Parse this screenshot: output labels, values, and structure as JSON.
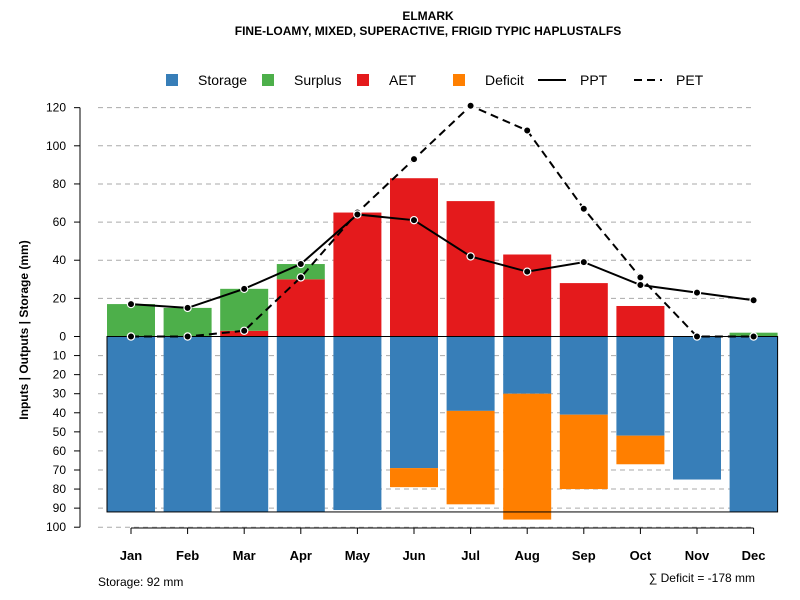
{
  "chart_data": {
    "type": "bar",
    "title": "ELMARK",
    "subtitle": "FINE-LOAMY, MIXED, SUPERACTIVE, FRIGID TYPIC HAPLUSTALFS",
    "ylabel": "Inputs | Outputs | Storage    (mm)",
    "months": [
      "Jan",
      "Feb",
      "Mar",
      "Apr",
      "May",
      "Jun",
      "Jul",
      "Aug",
      "Sep",
      "Oct",
      "Nov",
      "Dec"
    ],
    "upper_ylim": [
      0,
      130
    ],
    "upper_ticks": [
      0,
      20,
      40,
      60,
      80,
      100,
      120
    ],
    "lower_ylim": [
      0,
      100
    ],
    "lower_ticks": [
      0,
      10,
      20,
      30,
      40,
      50,
      60,
      70,
      80,
      90,
      100
    ],
    "aet": [
      0,
      0,
      3,
      30,
      65,
      83,
      71,
      43,
      28,
      16,
      0,
      0
    ],
    "surplus": [
      17,
      15,
      22,
      8,
      0,
      0,
      0,
      0,
      0,
      0,
      0,
      2
    ],
    "storage": [
      92,
      92,
      92,
      92,
      91,
      69,
      39,
      30,
      41,
      52,
      75,
      92
    ],
    "deficit": [
      0,
      0,
      0,
      0,
      0,
      10,
      49,
      66,
      39,
      15,
      0,
      0
    ],
    "ppt": [
      17,
      15,
      25,
      38,
      64,
      61,
      42,
      34,
      39,
      27,
      23,
      19
    ],
    "pet": [
      0,
      0,
      3,
      31,
      65,
      93,
      121,
      108,
      67,
      31,
      0,
      0
    ],
    "storage_capacity": 92,
    "legend": {
      "items": [
        {
          "key": "storage",
          "label": "Storage",
          "kind": "box",
          "color": "#377EB8"
        },
        {
          "key": "surplus",
          "label": "Surplus",
          "kind": "box",
          "color": "#4DAF4A"
        },
        {
          "key": "aet",
          "label": "AET",
          "kind": "box",
          "color": "#E41A1C"
        },
        {
          "key": "deficit",
          "label": "Deficit",
          "kind": "box",
          "color": "#FF7F00"
        },
        {
          "key": "ppt",
          "label": "PPT",
          "kind": "solid",
          "color": "#000000"
        },
        {
          "key": "pet",
          "label": "PET",
          "kind": "dashed",
          "color": "#000000"
        }
      ]
    },
    "footer_left": "Storage: 92 mm",
    "footer_right": "∑ Deficit = -178 mm"
  }
}
